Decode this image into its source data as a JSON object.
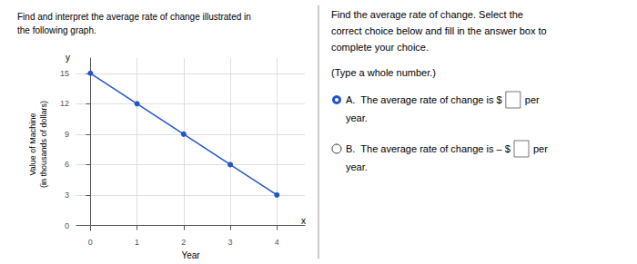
{
  "chart_data": {
    "type": "line",
    "title": "Find and interpret the average rate of change illustrated in\nthe following graph.",
    "xlabel": "Year",
    "ylabel": "Value of Machine\n(in thousands of dollars)",
    "x": [
      0,
      1,
      2,
      3,
      4
    ],
    "values": [
      15,
      12,
      9,
      6,
      3
    ],
    "color": "#2255cc",
    "marker": "circle",
    "xlim": [
      -0.3,
      4.6
    ],
    "ylim": [
      -0.5,
      16.5
    ],
    "xticks": [
      0,
      1,
      2,
      3,
      4
    ],
    "yticks": [
      0,
      3,
      6,
      9,
      12,
      15
    ],
    "grid": true,
    "annotations": [
      "x",
      "y",
      "Find the average rate of change. Select the",
      "correct choice below and fill in the answer box to",
      "complete your choice.",
      "(Type a whole number.)",
      "A.  The average rate of change is $",
      "per",
      "year.",
      "B.  The average rate of change is – $",
      "per",
      "year."
    ]
  }
}
